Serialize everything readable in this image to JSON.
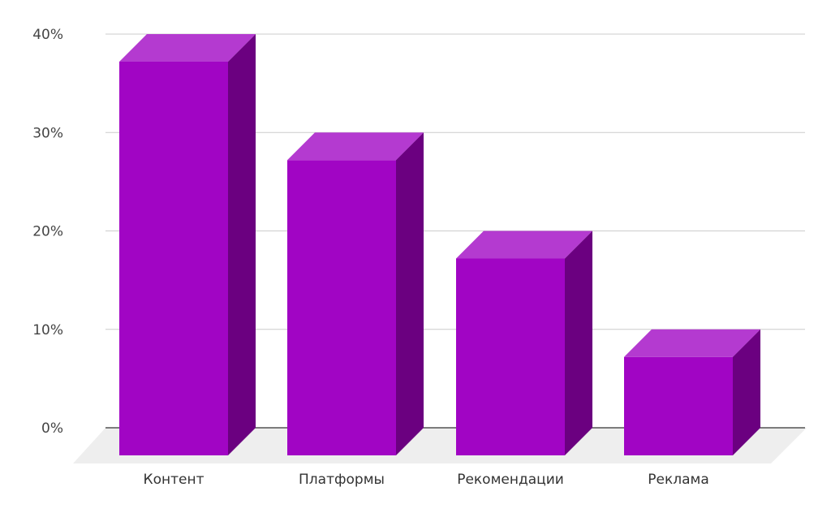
{
  "chart_data": {
    "type": "bar",
    "categories": [
      "Контент",
      "Платформы",
      "Рекомендации",
      "Реклама"
    ],
    "series": [
      {
        "values": [
          40,
          30,
          20,
          10
        ]
      }
    ],
    "ylim": [
      0,
      40
    ],
    "y_ticks": [
      0,
      10,
      20,
      30,
      40
    ],
    "y_tick_suffix": "%",
    "y_tick_labels": [
      "0%",
      "10%",
      "20%",
      "30%",
      "40%"
    ],
    "grid": true,
    "three_d": true,
    "colors": {
      "bar_front": "#a105c4",
      "bar_top": "#b43ad0",
      "bar_side": "#6b0080",
      "floor": "#eeeeee",
      "grid": "#cccccc",
      "axis": "#333333"
    }
  }
}
